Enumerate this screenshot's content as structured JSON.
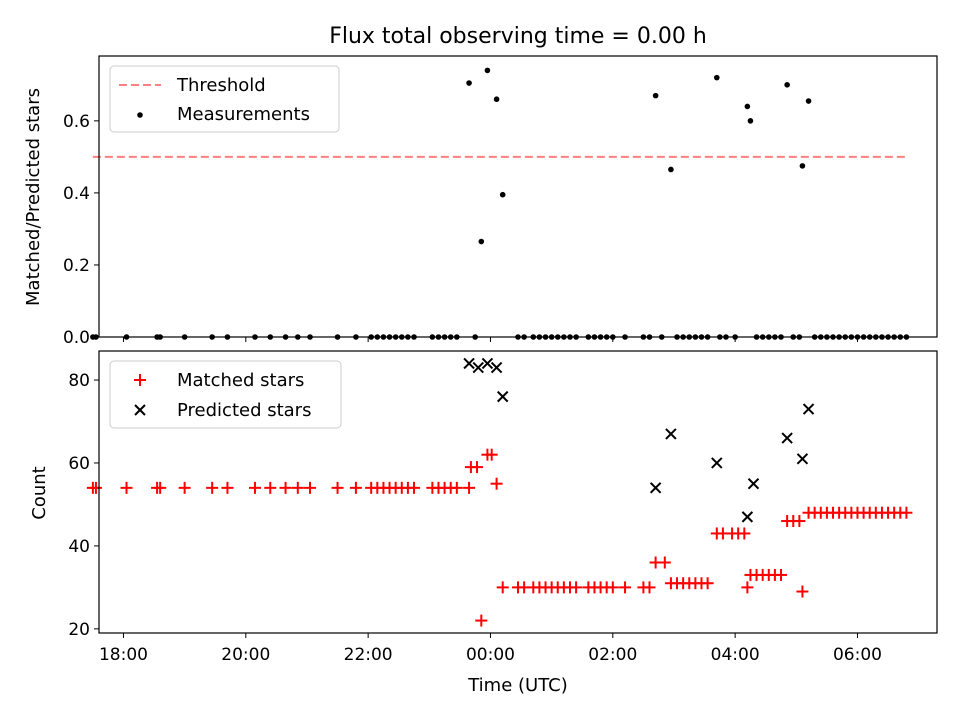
{
  "chart_data": [
    {
      "type": "scatter",
      "title": "Flux total observing time = 0.00 h",
      "xlabel": "",
      "ylabel": "Matched/Predicted stars",
      "xlim": [
        -6.4,
        7.3
      ],
      "ylim": [
        0.0,
        0.78
      ],
      "yticks": [
        0.0,
        0.2,
        0.4,
        0.6
      ],
      "ytick_labels": [
        "0.0",
        "0.2",
        "0.4",
        "0.6"
      ],
      "xticks": [
        -6,
        -4,
        -2,
        0,
        2,
        4,
        6
      ],
      "xtick_labels": [
        "",
        "",
        "",
        "",
        "",
        "",
        ""
      ],
      "grid": false,
      "legend_position": "top-left",
      "threshold": {
        "name": "Threshold",
        "value": 0.5,
        "x_range": [
          -6.5,
          6.8
        ],
        "color": "#ff7f7f",
        "style": "dashed"
      },
      "series": [
        {
          "name": "Measurements",
          "marker": "dot",
          "color": "#000000",
          "points": [
            [
              -6.5,
              0
            ],
            [
              -6.45,
              0
            ],
            [
              -5.95,
              0
            ],
            [
              -5.45,
              0
            ],
            [
              -5.4,
              0
            ],
            [
              -5.0,
              0
            ],
            [
              -4.55,
              0
            ],
            [
              -4.3,
              0
            ],
            [
              -3.85,
              0
            ],
            [
              -3.6,
              0
            ],
            [
              -3.35,
              0
            ],
            [
              -3.15,
              0
            ],
            [
              -2.95,
              0
            ],
            [
              -2.5,
              0
            ],
            [
              -2.2,
              0
            ],
            [
              -1.95,
              0
            ],
            [
              -1.85,
              0
            ],
            [
              -1.75,
              0
            ],
            [
              -1.65,
              0
            ],
            [
              -1.55,
              0
            ],
            [
              -1.45,
              0
            ],
            [
              -1.35,
              0
            ],
            [
              -1.25,
              0
            ],
            [
              -0.95,
              0
            ],
            [
              -0.85,
              0
            ],
            [
              -0.75,
              0
            ],
            [
              -0.65,
              0
            ],
            [
              -0.55,
              0
            ],
            [
              -0.35,
              0.705
            ],
            [
              -0.25,
              0
            ],
            [
              -0.15,
              0.265
            ],
            [
              -0.05,
              0.74
            ],
            [
              0.1,
              0.66
            ],
            [
              0.2,
              0.395
            ],
            [
              0.45,
              0
            ],
            [
              0.55,
              0
            ],
            [
              0.7,
              0
            ],
            [
              0.8,
              0
            ],
            [
              0.9,
              0
            ],
            [
              1.0,
              0
            ],
            [
              1.1,
              0
            ],
            [
              1.2,
              0
            ],
            [
              1.3,
              0
            ],
            [
              1.4,
              0
            ],
            [
              1.6,
              0
            ],
            [
              1.7,
              0
            ],
            [
              1.8,
              0
            ],
            [
              1.9,
              0
            ],
            [
              2.0,
              0
            ],
            [
              2.2,
              0
            ],
            [
              2.5,
              0
            ],
            [
              2.6,
              0
            ],
            [
              2.7,
              0.67
            ],
            [
              2.8,
              0
            ],
            [
              2.95,
              0.465
            ],
            [
              3.05,
              0
            ],
            [
              3.15,
              0
            ],
            [
              3.25,
              0
            ],
            [
              3.35,
              0
            ],
            [
              3.45,
              0
            ],
            [
              3.55,
              0
            ],
            [
              3.7,
              0.72
            ],
            [
              3.75,
              0
            ],
            [
              3.85,
              0
            ],
            [
              4.0,
              0
            ],
            [
              4.2,
              0.64
            ],
            [
              4.25,
              0.6
            ],
            [
              4.35,
              0
            ],
            [
              4.45,
              0
            ],
            [
              4.55,
              0
            ],
            [
              4.65,
              0
            ],
            [
              4.75,
              0
            ],
            [
              4.85,
              0.7
            ],
            [
              4.95,
              0
            ],
            [
              5.05,
              0
            ],
            [
              5.1,
              0.475
            ],
            [
              5.2,
              0.655
            ],
            [
              5.3,
              0
            ],
            [
              5.4,
              0
            ],
            [
              5.5,
              0
            ],
            [
              5.6,
              0
            ],
            [
              5.7,
              0
            ],
            [
              5.8,
              0
            ],
            [
              5.9,
              0
            ],
            [
              6.0,
              0
            ],
            [
              6.1,
              0
            ],
            [
              6.2,
              0
            ],
            [
              6.3,
              0
            ],
            [
              6.4,
              0
            ],
            [
              6.5,
              0
            ],
            [
              6.6,
              0
            ],
            [
              6.7,
              0
            ],
            [
              6.8,
              0
            ]
          ]
        }
      ]
    },
    {
      "type": "scatter",
      "title": "",
      "xlabel": "Time (UTC)",
      "ylabel": "Count",
      "xlim": [
        -6.4,
        7.3
      ],
      "ylim": [
        19.0,
        87.0
      ],
      "yticks": [
        20,
        40,
        60,
        80
      ],
      "ytick_labels": [
        "20",
        "40",
        "60",
        "80"
      ],
      "xticks": [
        -6,
        -4,
        -2,
        0,
        2,
        4,
        6
      ],
      "xtick_labels": [
        "18:00",
        "20:00",
        "22:00",
        "00:00",
        "02:00",
        "04:00",
        "06:00"
      ],
      "grid": false,
      "legend_position": "top-left",
      "series": [
        {
          "name": "Matched stars",
          "marker": "plus",
          "color": "#ff0000",
          "points": [
            [
              -6.5,
              54
            ],
            [
              -6.45,
              54
            ],
            [
              -5.95,
              54
            ],
            [
              -5.45,
              54
            ],
            [
              -5.4,
              54
            ],
            [
              -5.0,
              54
            ],
            [
              -4.55,
              54
            ],
            [
              -4.3,
              54
            ],
            [
              -3.85,
              54
            ],
            [
              -3.6,
              54
            ],
            [
              -3.35,
              54
            ],
            [
              -3.15,
              54
            ],
            [
              -2.95,
              54
            ],
            [
              -2.5,
              54
            ],
            [
              -2.2,
              54
            ],
            [
              -1.95,
              54
            ],
            [
              -1.85,
              54
            ],
            [
              -1.75,
              54
            ],
            [
              -1.65,
              54
            ],
            [
              -1.55,
              54
            ],
            [
              -1.45,
              54
            ],
            [
              -1.35,
              54
            ],
            [
              -1.25,
              54
            ],
            [
              -0.95,
              54
            ],
            [
              -0.85,
              54
            ],
            [
              -0.75,
              54
            ],
            [
              -0.65,
              54
            ],
            [
              -0.55,
              54
            ],
            [
              -0.35,
              54
            ],
            [
              -0.32,
              59
            ],
            [
              -0.22,
              59
            ],
            [
              -0.15,
              22
            ],
            [
              -0.05,
              62
            ],
            [
              0.02,
              62
            ],
            [
              0.1,
              55
            ],
            [
              0.2,
              30
            ],
            [
              0.45,
              30
            ],
            [
              0.55,
              30
            ],
            [
              0.7,
              30
            ],
            [
              0.8,
              30
            ],
            [
              0.9,
              30
            ],
            [
              1.0,
              30
            ],
            [
              1.1,
              30
            ],
            [
              1.2,
              30
            ],
            [
              1.3,
              30
            ],
            [
              1.4,
              30
            ],
            [
              1.6,
              30
            ],
            [
              1.7,
              30
            ],
            [
              1.8,
              30
            ],
            [
              1.9,
              30
            ],
            [
              2.0,
              30
            ],
            [
              2.2,
              30
            ],
            [
              2.5,
              30
            ],
            [
              2.6,
              30
            ],
            [
              2.7,
              36
            ],
            [
              2.85,
              36
            ],
            [
              2.95,
              31
            ],
            [
              3.05,
              31
            ],
            [
              3.15,
              31
            ],
            [
              3.25,
              31
            ],
            [
              3.35,
              31
            ],
            [
              3.45,
              31
            ],
            [
              3.55,
              31
            ],
            [
              3.7,
              43
            ],
            [
              3.8,
              43
            ],
            [
              3.95,
              43
            ],
            [
              4.05,
              43
            ],
            [
              4.15,
              43
            ],
            [
              4.2,
              30
            ],
            [
              4.25,
              33
            ],
            [
              4.35,
              33
            ],
            [
              4.45,
              33
            ],
            [
              4.55,
              33
            ],
            [
              4.65,
              33
            ],
            [
              4.75,
              33
            ],
            [
              4.85,
              46
            ],
            [
              4.95,
              46
            ],
            [
              5.05,
              46
            ],
            [
              5.1,
              29
            ],
            [
              5.2,
              48
            ],
            [
              5.3,
              48
            ],
            [
              5.4,
              48
            ],
            [
              5.5,
              48
            ],
            [
              5.6,
              48
            ],
            [
              5.7,
              48
            ],
            [
              5.8,
              48
            ],
            [
              5.9,
              48
            ],
            [
              6.0,
              48
            ],
            [
              6.1,
              48
            ],
            [
              6.2,
              48
            ],
            [
              6.3,
              48
            ],
            [
              6.4,
              48
            ],
            [
              6.5,
              48
            ],
            [
              6.6,
              48
            ],
            [
              6.7,
              48
            ],
            [
              6.8,
              48
            ]
          ]
        },
        {
          "name": "Predicted stars",
          "marker": "x",
          "color": "#000000",
          "points": [
            [
              -0.35,
              84
            ],
            [
              -0.2,
              83
            ],
            [
              -0.05,
              84
            ],
            [
              0.1,
              83
            ],
            [
              0.2,
              76
            ],
            [
              2.7,
              54
            ],
            [
              2.95,
              67
            ],
            [
              3.7,
              60
            ],
            [
              4.2,
              47
            ],
            [
              4.3,
              55
            ],
            [
              4.85,
              66
            ],
            [
              5.1,
              61
            ],
            [
              5.2,
              73
            ]
          ]
        }
      ]
    }
  ]
}
